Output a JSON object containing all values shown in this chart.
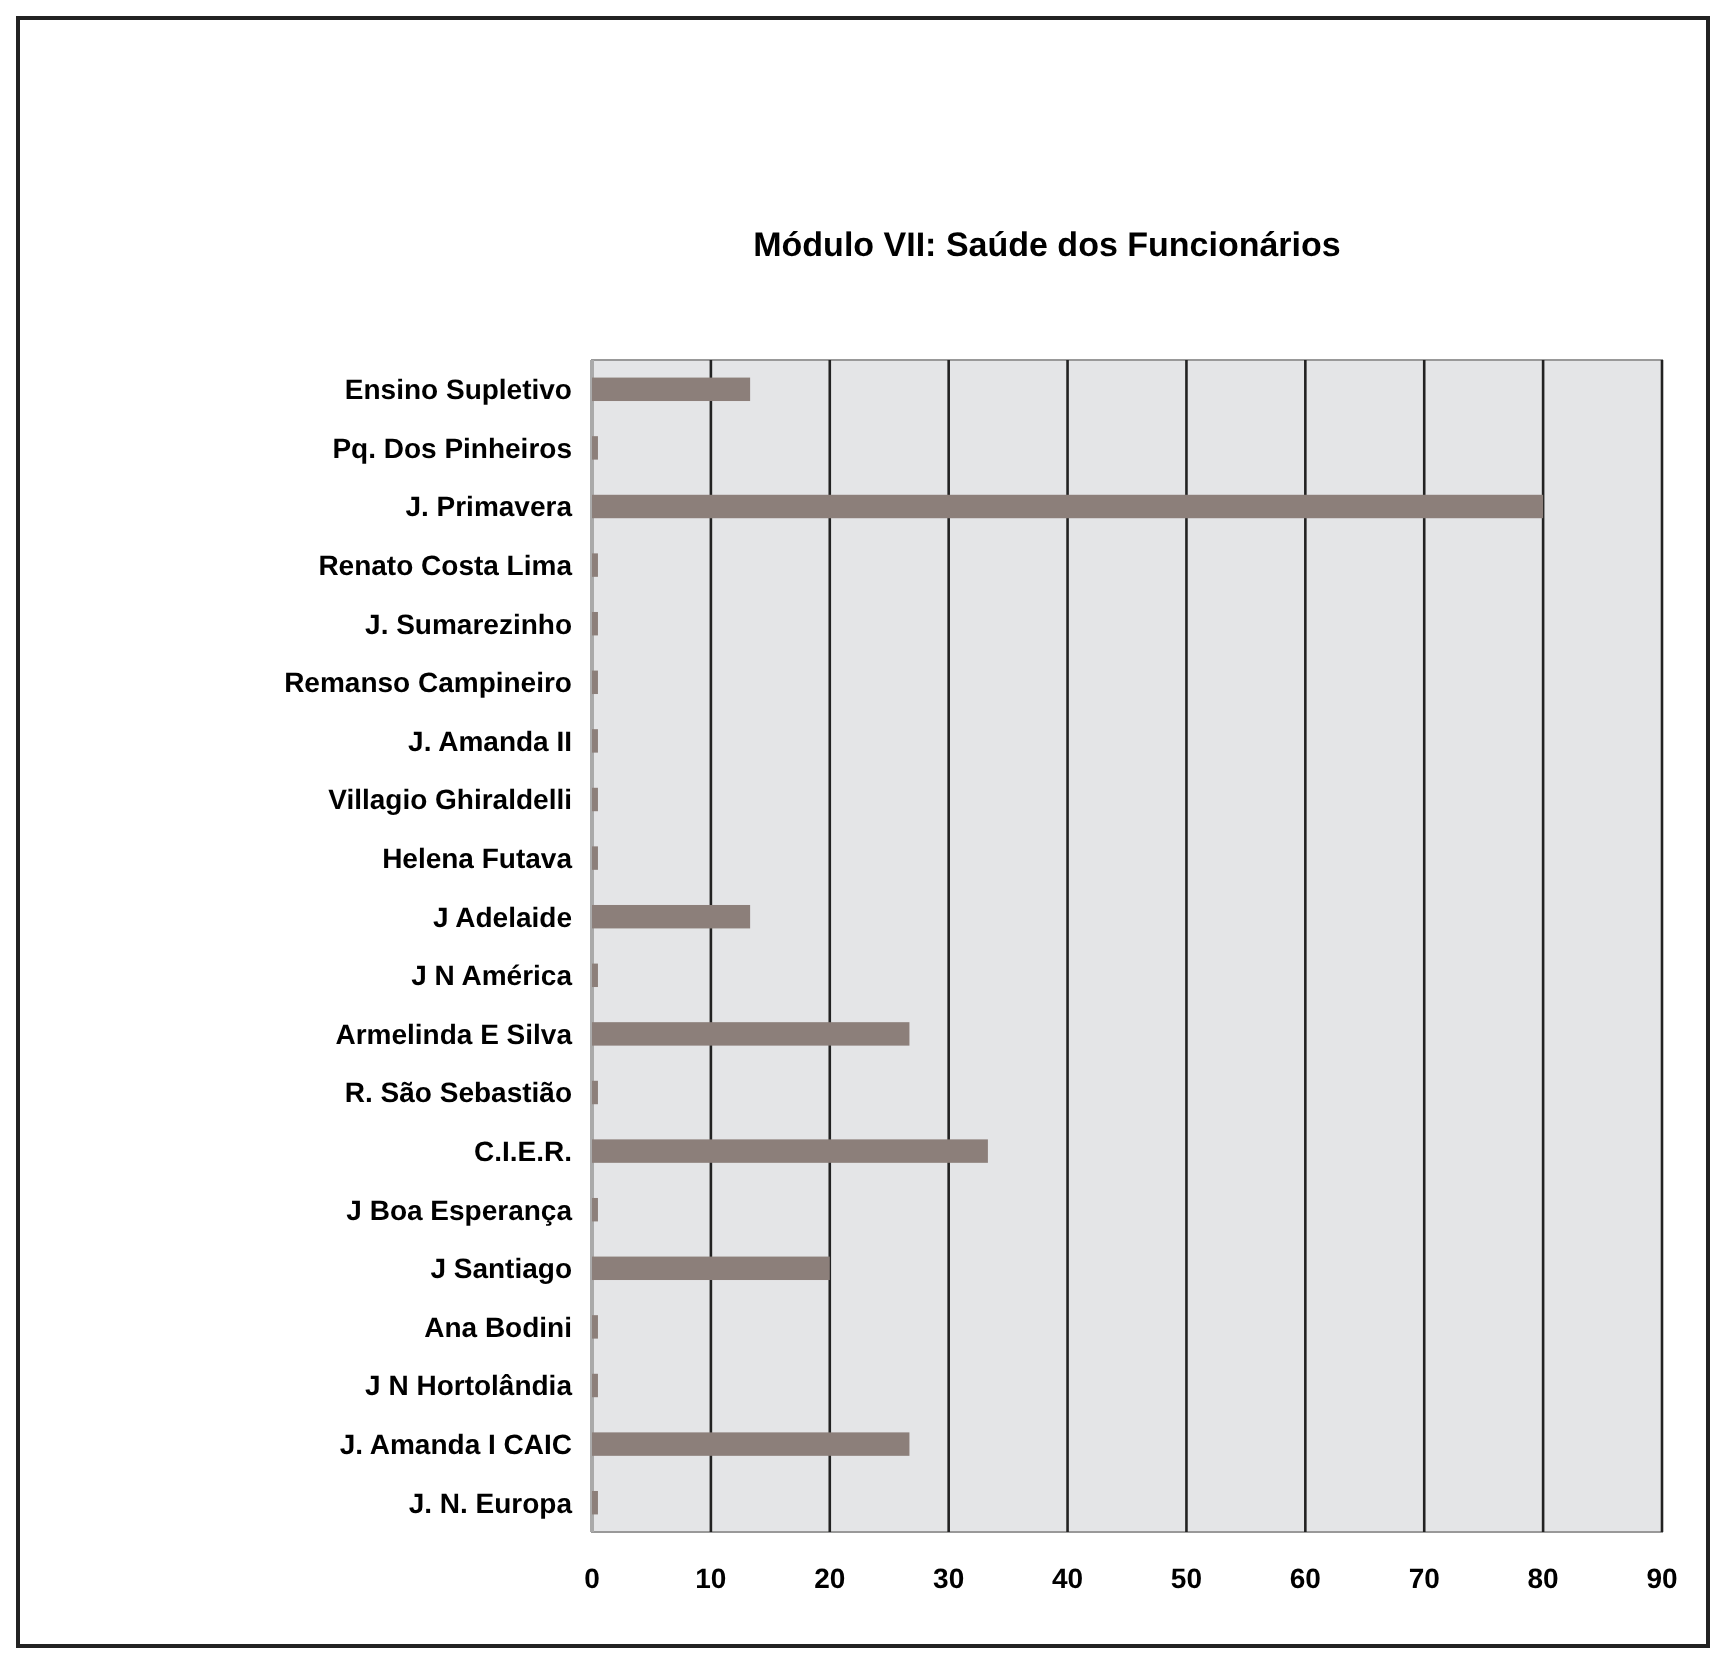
{
  "chart_data": {
    "type": "bar",
    "orientation": "horizontal",
    "title": "Módulo VII: Saúde dos Funcionários",
    "categories": [
      "Ensino Supletivo",
      "Pq. Dos Pinheiros",
      "J. Primavera",
      "Renato Costa Lima",
      "J. Sumarezinho",
      "Remanso Campineiro",
      "J. Amanda II",
      "Villagio Ghiraldelli",
      "Helena Futava",
      "J Adelaide",
      "J N América",
      "Armelinda E Silva",
      "R. São Sebastião",
      "C.I.E.R.",
      "J Boa Esperança",
      "J Santiago",
      "Ana Bodini",
      "J N Hortolândia",
      "J. Amanda I CAIC",
      "J. N. Europa"
    ],
    "values": [
      13.3,
      0.5,
      80,
      0.5,
      0.5,
      0.5,
      0.5,
      0.5,
      0.5,
      13.3,
      0.5,
      26.7,
      0.5,
      33.3,
      0.5,
      20,
      0.5,
      0.5,
      26.7,
      0.5
    ],
    "color": "#8c7f7a",
    "xlim": [
      0,
      90
    ],
    "xticks": [
      0,
      10,
      20,
      30,
      40,
      50,
      60,
      70,
      80,
      90
    ],
    "grid": "x"
  }
}
